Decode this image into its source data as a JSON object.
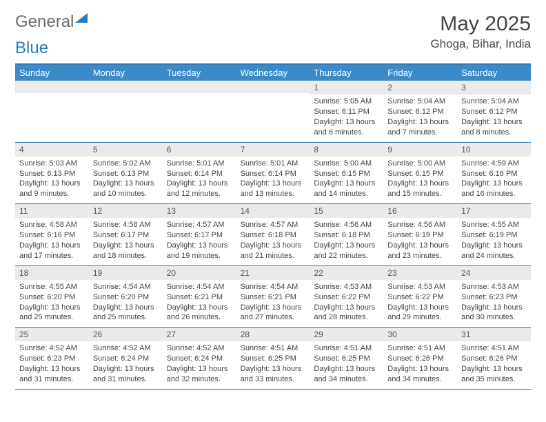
{
  "brand": {
    "part1": "General",
    "part2": "Blue"
  },
  "title": "May 2025",
  "location": "Ghoga, Bihar, India",
  "colors": {
    "header_bg": "#3b8bc9",
    "header_text": "#ffffff",
    "border": "#2b7bbf",
    "numbar_bg": "#e9eaeb",
    "text": "#444444",
    "title_color": "#454545",
    "logo_gray": "#6b6b6b",
    "logo_blue": "#2b7bbf",
    "page_bg": "#ffffff"
  },
  "layout": {
    "columns": 7,
    "cell_font_size_pt": 8,
    "header_font_size_pt": 10,
    "title_font_size_pt": 22
  },
  "day_names": [
    "Sunday",
    "Monday",
    "Tuesday",
    "Wednesday",
    "Thursday",
    "Friday",
    "Saturday"
  ],
  "weeks": [
    [
      {
        "n": "",
        "sunrise": "",
        "sunset": "",
        "daylight": ""
      },
      {
        "n": "",
        "sunrise": "",
        "sunset": "",
        "daylight": ""
      },
      {
        "n": "",
        "sunrise": "",
        "sunset": "",
        "daylight": ""
      },
      {
        "n": "",
        "sunrise": "",
        "sunset": "",
        "daylight": ""
      },
      {
        "n": "1",
        "sunrise": "Sunrise: 5:05 AM",
        "sunset": "Sunset: 6:11 PM",
        "daylight": "Daylight: 13 hours and 6 minutes."
      },
      {
        "n": "2",
        "sunrise": "Sunrise: 5:04 AM",
        "sunset": "Sunset: 6:12 PM",
        "daylight": "Daylight: 13 hours and 7 minutes."
      },
      {
        "n": "3",
        "sunrise": "Sunrise: 5:04 AM",
        "sunset": "Sunset: 6:12 PM",
        "daylight": "Daylight: 13 hours and 8 minutes."
      }
    ],
    [
      {
        "n": "4",
        "sunrise": "Sunrise: 5:03 AM",
        "sunset": "Sunset: 6:13 PM",
        "daylight": "Daylight: 13 hours and 9 minutes."
      },
      {
        "n": "5",
        "sunrise": "Sunrise: 5:02 AM",
        "sunset": "Sunset: 6:13 PM",
        "daylight": "Daylight: 13 hours and 10 minutes."
      },
      {
        "n": "6",
        "sunrise": "Sunrise: 5:01 AM",
        "sunset": "Sunset: 6:14 PM",
        "daylight": "Daylight: 13 hours and 12 minutes."
      },
      {
        "n": "7",
        "sunrise": "Sunrise: 5:01 AM",
        "sunset": "Sunset: 6:14 PM",
        "daylight": "Daylight: 13 hours and 13 minutes."
      },
      {
        "n": "8",
        "sunrise": "Sunrise: 5:00 AM",
        "sunset": "Sunset: 6:15 PM",
        "daylight": "Daylight: 13 hours and 14 minutes."
      },
      {
        "n": "9",
        "sunrise": "Sunrise: 5:00 AM",
        "sunset": "Sunset: 6:15 PM",
        "daylight": "Daylight: 13 hours and 15 minutes."
      },
      {
        "n": "10",
        "sunrise": "Sunrise: 4:59 AM",
        "sunset": "Sunset: 6:16 PM",
        "daylight": "Daylight: 13 hours and 16 minutes."
      }
    ],
    [
      {
        "n": "11",
        "sunrise": "Sunrise: 4:58 AM",
        "sunset": "Sunset: 6:16 PM",
        "daylight": "Daylight: 13 hours and 17 minutes."
      },
      {
        "n": "12",
        "sunrise": "Sunrise: 4:58 AM",
        "sunset": "Sunset: 6:17 PM",
        "daylight": "Daylight: 13 hours and 18 minutes."
      },
      {
        "n": "13",
        "sunrise": "Sunrise: 4:57 AM",
        "sunset": "Sunset: 6:17 PM",
        "daylight": "Daylight: 13 hours and 19 minutes."
      },
      {
        "n": "14",
        "sunrise": "Sunrise: 4:57 AM",
        "sunset": "Sunset: 6:18 PM",
        "daylight": "Daylight: 13 hours and 21 minutes."
      },
      {
        "n": "15",
        "sunrise": "Sunrise: 4:56 AM",
        "sunset": "Sunset: 6:18 PM",
        "daylight": "Daylight: 13 hours and 22 minutes."
      },
      {
        "n": "16",
        "sunrise": "Sunrise: 4:56 AM",
        "sunset": "Sunset: 6:19 PM",
        "daylight": "Daylight: 13 hours and 23 minutes."
      },
      {
        "n": "17",
        "sunrise": "Sunrise: 4:55 AM",
        "sunset": "Sunset: 6:19 PM",
        "daylight": "Daylight: 13 hours and 24 minutes."
      }
    ],
    [
      {
        "n": "18",
        "sunrise": "Sunrise: 4:55 AM",
        "sunset": "Sunset: 6:20 PM",
        "daylight": "Daylight: 13 hours and 25 minutes."
      },
      {
        "n": "19",
        "sunrise": "Sunrise: 4:54 AM",
        "sunset": "Sunset: 6:20 PM",
        "daylight": "Daylight: 13 hours and 25 minutes."
      },
      {
        "n": "20",
        "sunrise": "Sunrise: 4:54 AM",
        "sunset": "Sunset: 6:21 PM",
        "daylight": "Daylight: 13 hours and 26 minutes."
      },
      {
        "n": "21",
        "sunrise": "Sunrise: 4:54 AM",
        "sunset": "Sunset: 6:21 PM",
        "daylight": "Daylight: 13 hours and 27 minutes."
      },
      {
        "n": "22",
        "sunrise": "Sunrise: 4:53 AM",
        "sunset": "Sunset: 6:22 PM",
        "daylight": "Daylight: 13 hours and 28 minutes."
      },
      {
        "n": "23",
        "sunrise": "Sunrise: 4:53 AM",
        "sunset": "Sunset: 6:22 PM",
        "daylight": "Daylight: 13 hours and 29 minutes."
      },
      {
        "n": "24",
        "sunrise": "Sunrise: 4:53 AM",
        "sunset": "Sunset: 6:23 PM",
        "daylight": "Daylight: 13 hours and 30 minutes."
      }
    ],
    [
      {
        "n": "25",
        "sunrise": "Sunrise: 4:52 AM",
        "sunset": "Sunset: 6:23 PM",
        "daylight": "Daylight: 13 hours and 31 minutes."
      },
      {
        "n": "26",
        "sunrise": "Sunrise: 4:52 AM",
        "sunset": "Sunset: 6:24 PM",
        "daylight": "Daylight: 13 hours and 31 minutes."
      },
      {
        "n": "27",
        "sunrise": "Sunrise: 4:52 AM",
        "sunset": "Sunset: 6:24 PM",
        "daylight": "Daylight: 13 hours and 32 minutes."
      },
      {
        "n": "28",
        "sunrise": "Sunrise: 4:51 AM",
        "sunset": "Sunset: 6:25 PM",
        "daylight": "Daylight: 13 hours and 33 minutes."
      },
      {
        "n": "29",
        "sunrise": "Sunrise: 4:51 AM",
        "sunset": "Sunset: 6:25 PM",
        "daylight": "Daylight: 13 hours and 34 minutes."
      },
      {
        "n": "30",
        "sunrise": "Sunrise: 4:51 AM",
        "sunset": "Sunset: 6:26 PM",
        "daylight": "Daylight: 13 hours and 34 minutes."
      },
      {
        "n": "31",
        "sunrise": "Sunrise: 4:51 AM",
        "sunset": "Sunset: 6:26 PM",
        "daylight": "Daylight: 13 hours and 35 minutes."
      }
    ]
  ]
}
